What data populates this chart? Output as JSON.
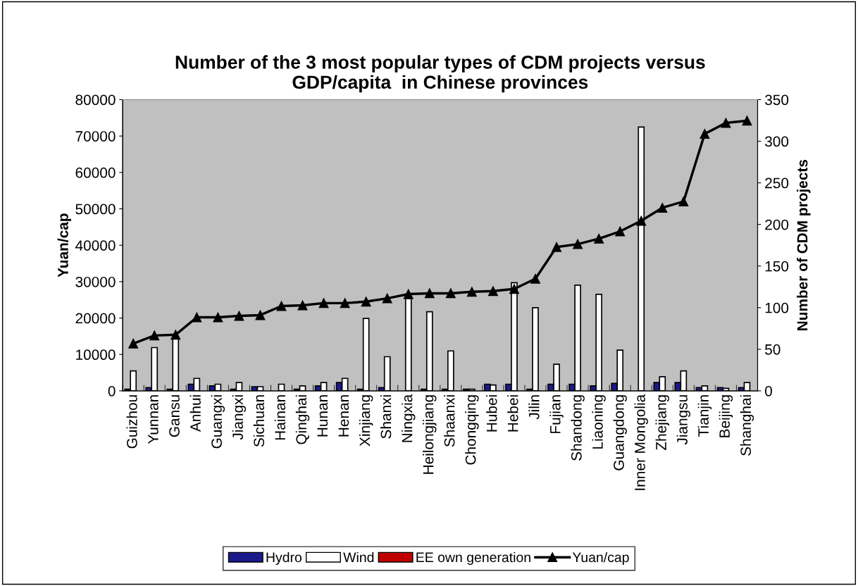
{
  "chart_data": {
    "type": "bar",
    "title": "Number of the 3 most popular types of CDM projects versus\nGDP/capita  in Chinese provinces",
    "ylabel": "Yuan/cap",
    "y2label": "Number of CDM projects",
    "categories": [
      "Guizhou",
      "Yunnan",
      "Gansu",
      "Anhui",
      "Guangxi",
      "Jiangxi",
      "Sichuan",
      "Hainan",
      "Qinghai",
      "Hunan",
      "Henan",
      "Xinjiang",
      "Shanxi",
      "Ningxia",
      "Heilongjiang",
      "Shaanxi",
      "Chongqing",
      "Hubei",
      "Hebei",
      "Jilin",
      "Fujian",
      "Shandong",
      "Liaoning",
      "Guangdong",
      "Inner Mongolia",
      "Zhejiang",
      "Jiangsu",
      "Tianjin",
      "Beijing",
      "Shanghai"
    ],
    "series": [
      {
        "name": "Hydro",
        "axis": "y2",
        "color": "#1a1a8c",
        "values": [
          2,
          4,
          2,
          8,
          6,
          2,
          5,
          0,
          2,
          6,
          10,
          2,
          4,
          0,
          2,
          2,
          2,
          8,
          8,
          2,
          8,
          8,
          6,
          9,
          0,
          10,
          10,
          4,
          4,
          4
        ]
      },
      {
        "name": "Wind",
        "axis": "y2",
        "color": "#ffffff",
        "values": [
          24,
          52,
          63,
          15,
          8,
          10,
          5,
          8,
          6,
          10,
          15,
          87,
          41,
          111,
          95,
          48,
          2,
          7,
          130,
          100,
          32,
          127,
          116,
          49,
          317,
          17,
          24,
          6,
          3,
          10
        ]
      },
      {
        "name": "EE own generation",
        "axis": "y2",
        "color": "#c00000",
        "values": [
          0,
          0,
          0,
          0,
          0,
          0,
          0,
          0,
          0,
          0,
          0,
          0,
          0,
          0,
          0,
          0,
          0,
          0,
          0,
          0,
          0,
          0,
          0,
          0,
          0,
          0,
          0,
          0,
          0,
          0
        ]
      },
      {
        "name": "Yuan/cap",
        "type": "line",
        "color": "#000000",
        "marker": "triangle",
        "line_style": "solid",
        "values": [
          13000,
          15200,
          15400,
          20200,
          20200,
          20600,
          20800,
          23300,
          23500,
          24100,
          24100,
          24500,
          25400,
          26600,
          26800,
          26800,
          27200,
          27400,
          28000,
          30800,
          39500,
          40300,
          41800,
          43800,
          46700,
          50300,
          52000,
          70600,
          73600,
          74200
        ]
      }
    ],
    "ylim": [
      0,
      80000
    ],
    "yticks": [
      0,
      10000,
      20000,
      30000,
      40000,
      50000,
      60000,
      70000,
      80000
    ],
    "y2lim": [
      0,
      350
    ],
    "y2ticks": [
      0,
      50,
      100,
      150,
      200,
      250,
      300,
      350
    ],
    "grid": false,
    "legend": "bottom"
  }
}
